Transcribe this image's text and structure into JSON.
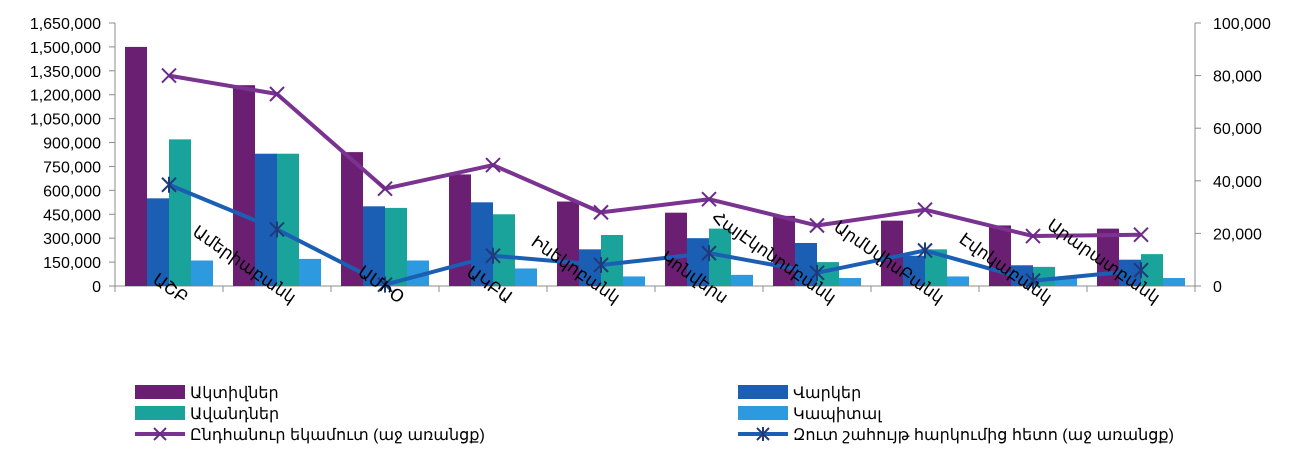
{
  "chart_data": {
    "type": "bar",
    "categories": [
      "ԱՇԲ",
      "Ամերիաբանկ",
      "ԱՄԻՕ",
      "ԱԿԲԱ",
      "Ինեկոբանկ",
      "Կոնվերս",
      "ՀայԷկոնոմբանկ",
      "ԱրմՍվիսԲանկ",
      "Էվոկաբանկ",
      "Արարատբանկ"
    ],
    "series": [
      {
        "name": "Ակտիվներ",
        "kind": "bar",
        "axis": "left",
        "color": "#6b1f73",
        "values": [
          1500000,
          1260000,
          840000,
          700000,
          530000,
          460000,
          440000,
          410000,
          380000,
          360000
        ]
      },
      {
        "name": "Վարկեր",
        "kind": "bar",
        "axis": "left",
        "color": "#1a5fb4",
        "values": [
          550000,
          830000,
          500000,
          525000,
          230000,
          300000,
          270000,
          190000,
          130000,
          165000
        ]
      },
      {
        "name": "Ավանդներ",
        "kind": "bar",
        "axis": "left",
        "color": "#1aa39a",
        "values": [
          920000,
          830000,
          490000,
          450000,
          320000,
          360000,
          150000,
          230000,
          120000,
          200000
        ]
      },
      {
        "name": "Կապիտալ",
        "kind": "bar",
        "axis": "left",
        "color": "#2d9ae0",
        "values": [
          160000,
          170000,
          160000,
          110000,
          60000,
          70000,
          50000,
          60000,
          50000,
          50000
        ]
      },
      {
        "name": "Ընդհանուր եկամուտ (աջ առանցք)",
        "kind": "line",
        "axis": "right",
        "color": "#7a3391",
        "marker": "x",
        "values": [
          80000,
          73000,
          37000,
          46000,
          28000,
          33000,
          23000,
          29000,
          19000,
          19500
        ]
      },
      {
        "name": "Զուտ շահույթ հարկումից հետո (աջ առանցք)",
        "kind": "line",
        "axis": "right",
        "color": "#1a5fb4",
        "marker": "star",
        "values": [
          38500,
          21500,
          500,
          11500,
          8000,
          12500,
          5000,
          13500,
          2000,
          6000
        ]
      }
    ],
    "y_left": {
      "min": 0,
      "max": 1650000,
      "step": 150000,
      "ticks": [
        "0",
        "150,000",
        "300,000",
        "450,000",
        "600,000",
        "750,000",
        "900,000",
        "1,050,000",
        "1,200,000",
        "1,350,000",
        "1,500,000",
        "1,650,000"
      ]
    },
    "y_right": {
      "min": 0,
      "max": 100000,
      "step": 20000,
      "ticks": [
        "0",
        "20,000",
        "40,000",
        "60,000",
        "80,000",
        "100,000"
      ]
    },
    "grid": false,
    "legend_position": "bottom"
  }
}
